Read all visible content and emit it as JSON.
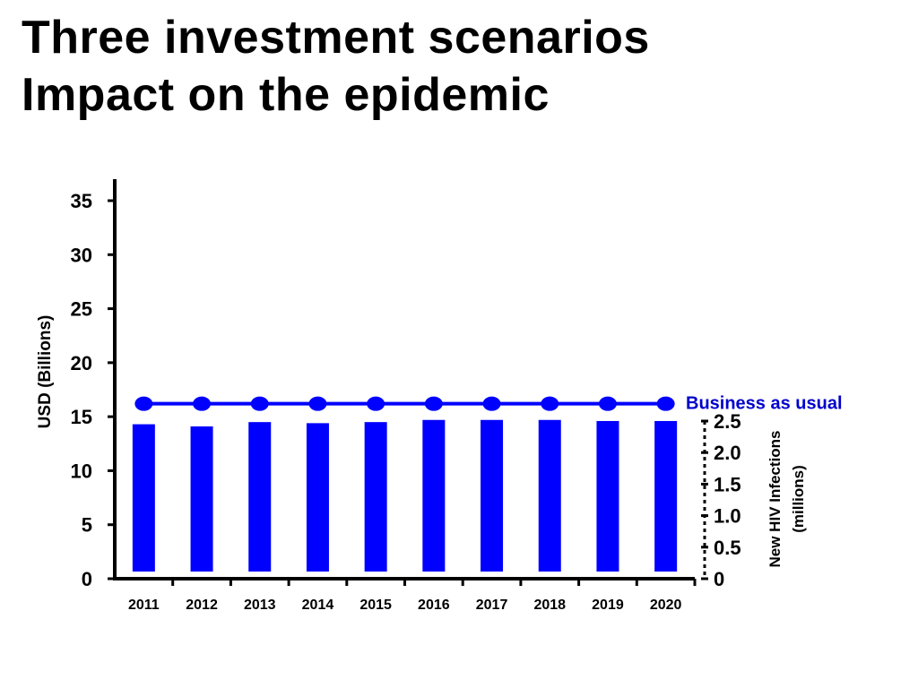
{
  "slide": {
    "title_line1": "Three investment scenarios",
    "title_line2": "Impact on the epidemic"
  },
  "chart_data": {
    "type": "bar",
    "title": "",
    "categories": [
      "2011",
      "2012",
      "2013",
      "2014",
      "2015",
      "2016",
      "2017",
      "2018",
      "2019",
      "2020"
    ],
    "series": [
      {
        "type": "bar",
        "axis": "left",
        "values": [
          14.3,
          14.1,
          14.5,
          14.4,
          14.5,
          14.7,
          14.7,
          14.7,
          14.6,
          14.6
        ]
      },
      {
        "name": "Business as usual",
        "type": "line",
        "axis": "left",
        "values": [
          16.2,
          16.2,
          16.2,
          16.2,
          16.2,
          16.2,
          16.2,
          16.2,
          16.2,
          16.2
        ]
      }
    ],
    "ylabel": "USD (Billions)",
    "ylim": [
      0,
      35
    ],
    "yticks": [
      "0",
      "5",
      "10",
      "15",
      "20",
      "25",
      "30",
      "35"
    ],
    "y2label_line1": "New HIV Infections",
    "y2label_line2": "(millions)",
    "y2lim": [
      0,
      2.5
    ],
    "y2ticks": [
      "0",
      "0.5",
      "1.0",
      "1.5",
      "2.0",
      "2.5"
    ],
    "grid": false,
    "colors": {
      "bars": "#0000ff",
      "line": "#0000ff",
      "line_label": "#0000cc"
    }
  }
}
